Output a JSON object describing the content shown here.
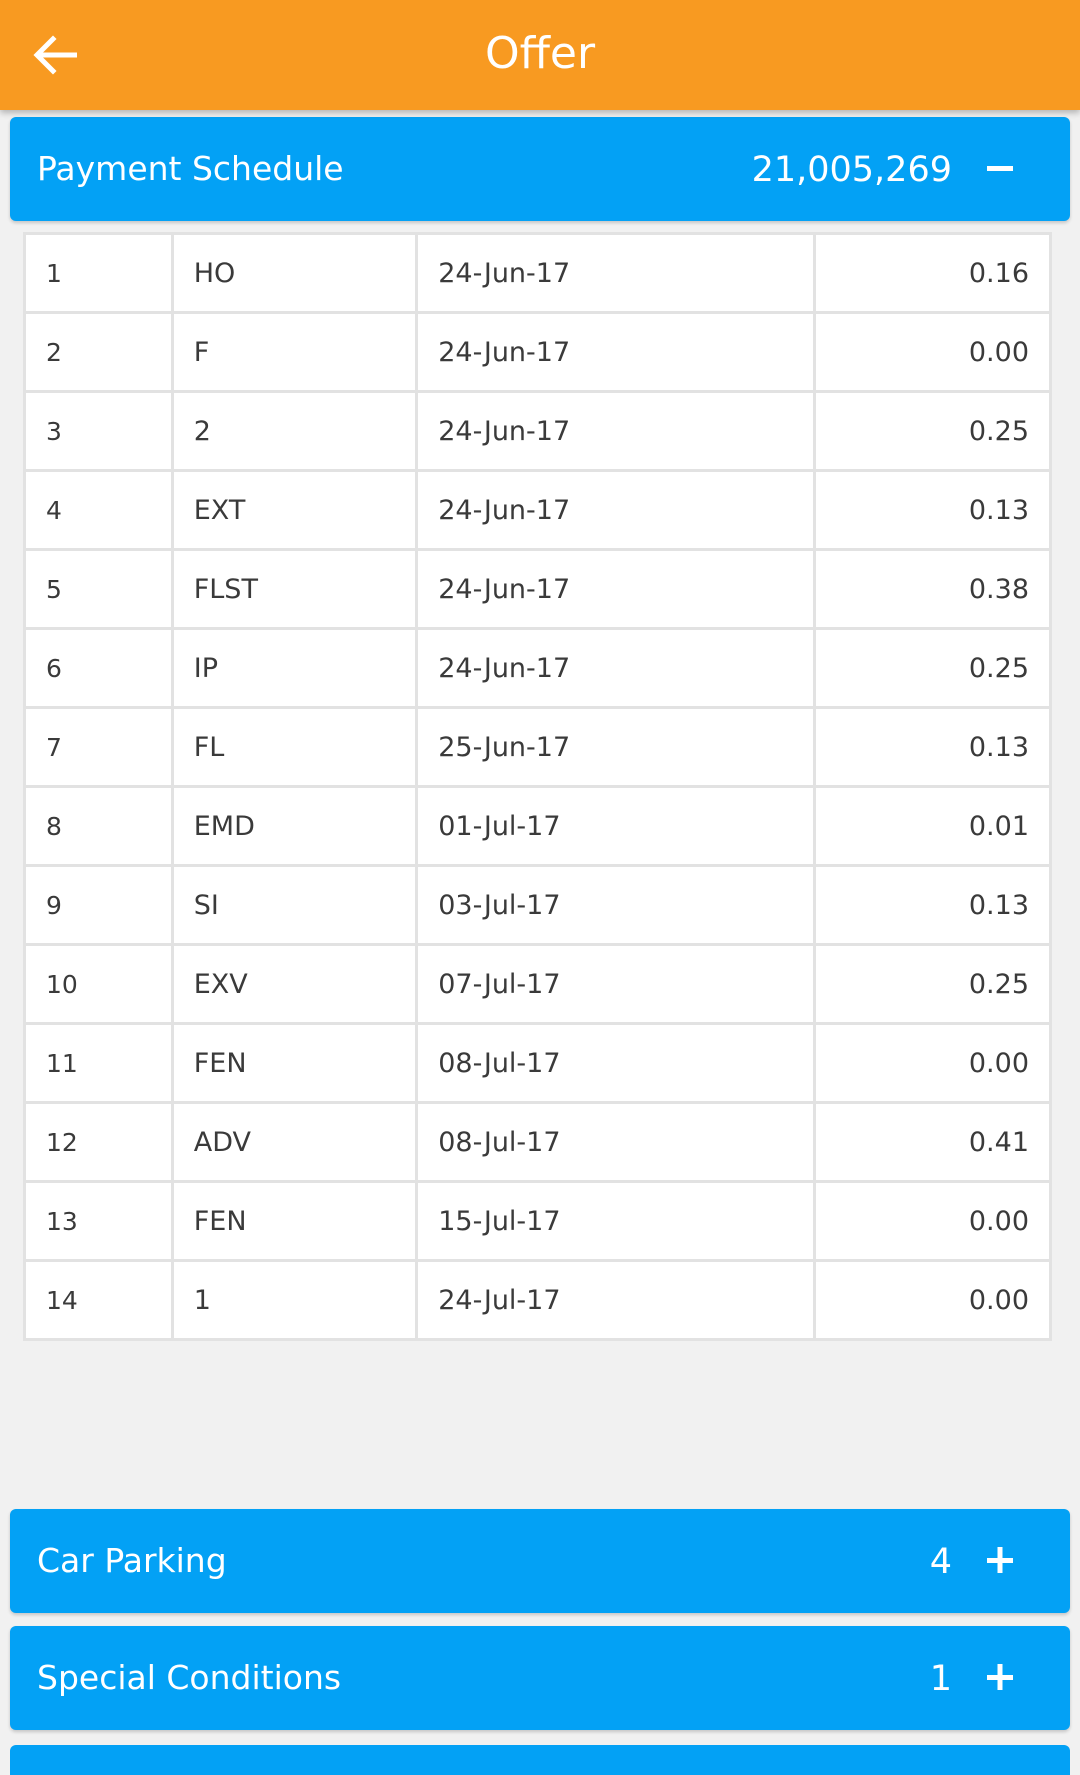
{
  "appbar": {
    "title": "Offer",
    "back_icon": "arrow-left-icon",
    "color": "#F89A21"
  },
  "payment_schedule": {
    "title": "Payment Schedule",
    "value": "21,005,269",
    "toggle_icon": "minus-icon",
    "color": "#03A1F5",
    "rows": [
      {
        "no": "1",
        "code": "HO",
        "date": "24-Jun-17",
        "pct": "0.16"
      },
      {
        "no": "2",
        "code": "F",
        "date": "24-Jun-17",
        "pct": "0.00"
      },
      {
        "no": "3",
        "code": "2",
        "date": "24-Jun-17",
        "pct": "0.25"
      },
      {
        "no": "4",
        "code": "EXT",
        "date": "24-Jun-17",
        "pct": "0.13"
      },
      {
        "no": "5",
        "code": "FLST",
        "date": "24-Jun-17",
        "pct": "0.38"
      },
      {
        "no": "6",
        "code": "IP",
        "date": "24-Jun-17",
        "pct": "0.25"
      },
      {
        "no": "7",
        "code": "FL",
        "date": "25-Jun-17",
        "pct": "0.13"
      },
      {
        "no": "8",
        "code": "EMD",
        "date": "01-Jul-17",
        "pct": "0.01"
      },
      {
        "no": "9",
        "code": "SI",
        "date": "03-Jul-17",
        "pct": "0.13"
      },
      {
        "no": "10",
        "code": "EXV",
        "date": "07-Jul-17",
        "pct": "0.25"
      },
      {
        "no": "11",
        "code": "FEN",
        "date": "08-Jul-17",
        "pct": "0.00"
      },
      {
        "no": "12",
        "code": "ADV",
        "date": "08-Jul-17",
        "pct": "0.41"
      },
      {
        "no": "13",
        "code": "FEN",
        "date": "15-Jul-17",
        "pct": "0.00"
      },
      {
        "no": "14",
        "code": "1",
        "date": "24-Jul-17",
        "pct": "0.00"
      }
    ]
  },
  "car_parking": {
    "title": "Car Parking",
    "value": "4",
    "toggle_icon": "plus-icon"
  },
  "special_conditions": {
    "title": "Special Conditions",
    "value": "1",
    "toggle_icon": "plus-icon"
  }
}
